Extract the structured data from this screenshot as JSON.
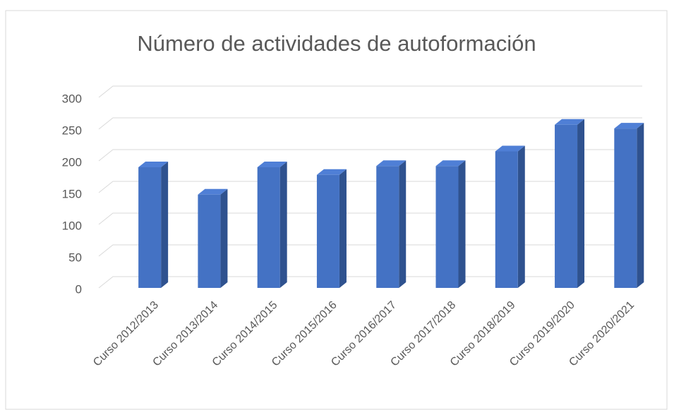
{
  "chart_data": {
    "type": "bar3d",
    "title": "Número de actividades de autoformación",
    "categories": [
      "Curso 2012/2013",
      "Curso 2013/2014",
      "Curso 2014/2015",
      "Curso 2015/2016",
      "Curso 2016/2017",
      "Curso 2017/2018",
      "Curso 2018/2019",
      "Curso 2019/2020",
      "Curso 2020/2021"
    ],
    "values": [
      190,
      147,
      190,
      178,
      192,
      192,
      215,
      257,
      251
    ],
    "color": "#4472c4",
    "ylim": [
      0,
      300
    ],
    "yticks": [
      0,
      50,
      100,
      150,
      200,
      250,
      300
    ],
    "grid": true
  }
}
